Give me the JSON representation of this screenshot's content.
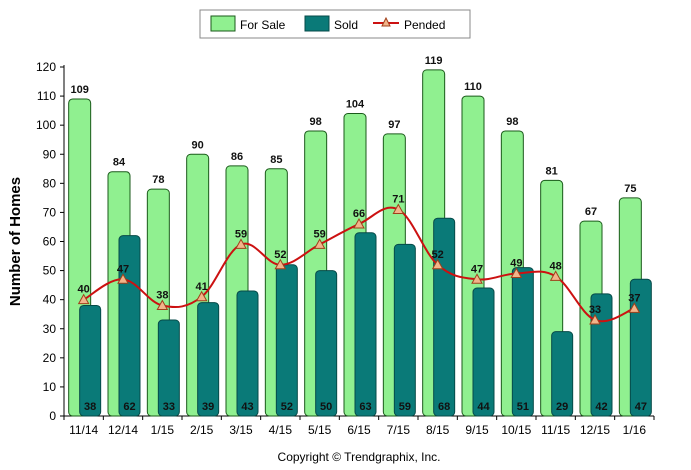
{
  "chart_data": {
    "type": "bar",
    "categories": [
      "11/14",
      "12/14",
      "1/15",
      "2/15",
      "3/15",
      "4/15",
      "5/15",
      "6/15",
      "7/15",
      "8/15",
      "9/15",
      "10/15",
      "11/15",
      "12/15",
      "1/16"
    ],
    "series": [
      {
        "name": "For Sale",
        "type": "bar",
        "values": [
          109,
          84,
          78,
          90,
          86,
          85,
          98,
          104,
          97,
          119,
          110,
          98,
          81,
          67,
          75
        ],
        "color": "#90f090"
      },
      {
        "name": "Sold",
        "type": "bar",
        "values": [
          38,
          62,
          33,
          39,
          43,
          52,
          50,
          63,
          59,
          68,
          44,
          51,
          29,
          42,
          47
        ],
        "color": "#0a7a78"
      },
      {
        "name": "Pended",
        "type": "line",
        "values": [
          40,
          47,
          38,
          41,
          59,
          52,
          59,
          66,
          71,
          52,
          47,
          49,
          48,
          33,
          37
        ],
        "color": "#cc1111"
      }
    ],
    "ylabel": "Number of Homes",
    "xlabel": "",
    "ylim": [
      0,
      120
    ],
    "yticks": [
      0,
      10,
      20,
      30,
      40,
      50,
      60,
      70,
      80,
      90,
      100,
      110,
      120
    ],
    "legend_position": "top-center",
    "grid": false
  },
  "footer": {
    "copyright": "Copyright © Trendgraphix, Inc."
  }
}
